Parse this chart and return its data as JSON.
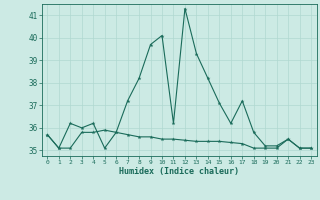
{
  "xlabel": "Humidex (Indice chaleur)",
  "background_color": "#cceae4",
  "grid_color": "#b0d8d0",
  "line_color": "#1a6b5a",
  "xlim": [
    -0.5,
    23.5
  ],
  "ylim": [
    34.75,
    41.5
  ],
  "yticks": [
    35,
    36,
    37,
    38,
    39,
    40,
    41
  ],
  "xticks": [
    0,
    1,
    2,
    3,
    4,
    5,
    6,
    7,
    8,
    9,
    10,
    11,
    12,
    13,
    14,
    15,
    16,
    17,
    18,
    19,
    20,
    21,
    22,
    23
  ],
  "series1_x": [
    0,
    1,
    2,
    3,
    4,
    5,
    6,
    7,
    8,
    9,
    10,
    11,
    12,
    13,
    14,
    15,
    16,
    17,
    18,
    19,
    20,
    21,
    22,
    23
  ],
  "series1_y": [
    35.7,
    35.1,
    36.2,
    36.0,
    36.2,
    35.1,
    35.8,
    37.2,
    38.2,
    39.7,
    40.1,
    36.2,
    41.3,
    39.3,
    38.2,
    37.1,
    36.2,
    37.2,
    35.8,
    35.2,
    35.2,
    35.5,
    35.1,
    35.1
  ],
  "series2_x": [
    0,
    1,
    2,
    3,
    4,
    5,
    6,
    7,
    8,
    9,
    10,
    11,
    12,
    13,
    14,
    15,
    16,
    17,
    18,
    19,
    20,
    21,
    22,
    23
  ],
  "series2_y": [
    35.7,
    35.1,
    35.1,
    35.8,
    35.8,
    35.9,
    35.8,
    35.7,
    35.6,
    35.6,
    35.5,
    35.5,
    35.45,
    35.4,
    35.4,
    35.4,
    35.35,
    35.3,
    35.1,
    35.1,
    35.1,
    35.5,
    35.1,
    35.1
  ]
}
